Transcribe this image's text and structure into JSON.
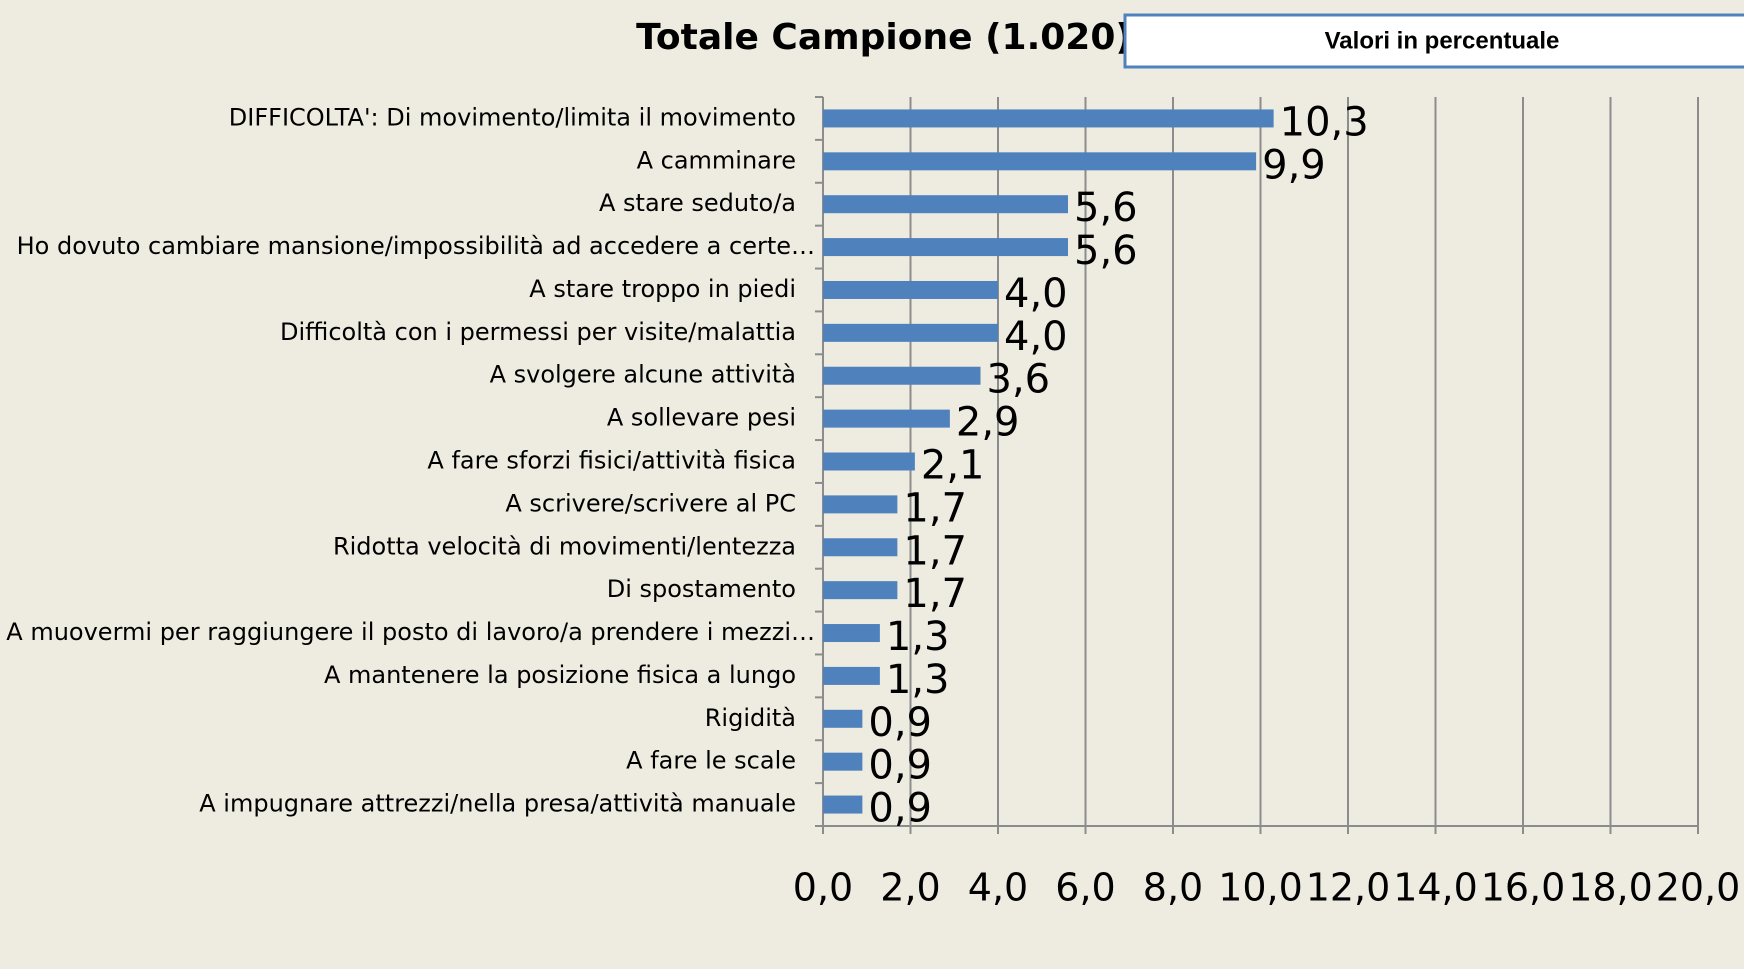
{
  "chart_data": {
    "type": "barh",
    "title": "Totale Campione (1.020)",
    "annotation": "Valori in percentuale",
    "categories": [
      "DIFFICOLTA': Di movimento/limita il movimento",
      "A camminare",
      "A stare seduto/a",
      "Ho dovuto cambiare mansione/impossibilità ad accedere a certe…",
      "A stare troppo in piedi",
      "Difficoltà con i permessi per visite/malattia",
      "A svolgere alcune attività",
      "A sollevare pesi",
      "A fare sforzi fisici/attività fisica",
      "A scrivere/scrivere al PC",
      "Ridotta velocità di movimenti/lentezza",
      "Di spostamento",
      "A muovermi per raggiungere il posto di lavoro/a prendere i mezzi…",
      "A mantenere la posizione fisica a lungo",
      "Rigidità",
      "A fare le scale",
      "A impugnare attrezzi/nella presa/attività manuale"
    ],
    "values": [
      10.3,
      9.9,
      5.6,
      5.6,
      4.0,
      4.0,
      3.6,
      2.9,
      2.1,
      1.7,
      1.7,
      1.7,
      1.3,
      1.3,
      0.9,
      0.9,
      0.9
    ],
    "value_labels": [
      "10,3",
      "9,9",
      "5,6",
      "5,6",
      "4,0",
      "4,0",
      "3,6",
      "2,9",
      "2,1",
      "1,7",
      "1,7",
      "1,7",
      "1,3",
      "1,3",
      "0,9",
      "0,9",
      "0,9"
    ],
    "color": "#4f81bd",
    "xlim": [
      0,
      20
    ],
    "xticks": [
      {
        "value": 0,
        "label": "0,0"
      },
      {
        "value": 2,
        "label": "2,0"
      },
      {
        "value": 4,
        "label": "4,0"
      },
      {
        "value": 6,
        "label": "6,0"
      },
      {
        "value": 8,
        "label": "8,0"
      },
      {
        "value": 10,
        "label": "10,0"
      },
      {
        "value": 12,
        "label": "12,0"
      },
      {
        "value": 14,
        "label": "14,0"
      },
      {
        "value": 16,
        "label": "16,0"
      },
      {
        "value": 18,
        "label": "18,0"
      },
      {
        "value": 20,
        "label": "20,0"
      }
    ],
    "grid": true
  }
}
